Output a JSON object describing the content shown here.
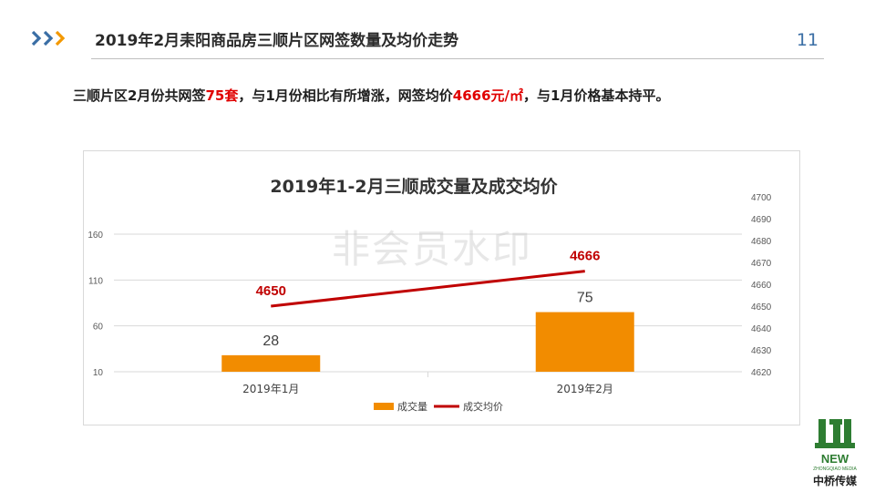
{
  "header": {
    "title": "2019年2月耒阳商品房三顺片区网签数量及均价走势",
    "page_number": "11"
  },
  "summary": {
    "part1": "三顺片区2月份共网签",
    "highlight1": "75套",
    "part2": "，与1月份相比有所增涨，网签均价",
    "highlight2": "4666元/㎡",
    "part3": "，与1月价格基本持平。"
  },
  "watermark": "非会员水印",
  "colors": {
    "bar": "#f28c00",
    "line": "#c00000",
    "accent_blue": "#3a6ea5",
    "accent_orange": "#f39800"
  },
  "logo": {
    "top_text": "NEW",
    "sub_text": "ZHONGQIAO MEDIA",
    "name": "中桥传媒"
  },
  "chart_data": {
    "type": "bar",
    "title": "2019年1-2月三顺成交量及成交均价",
    "categories": [
      "2019年1月",
      "2019年2月"
    ],
    "series": [
      {
        "name": "成交量",
        "type": "bar",
        "axis": "left",
        "values": [
          28,
          75
        ],
        "labels": [
          "28",
          "75"
        ]
      },
      {
        "name": "成交均价",
        "type": "line",
        "axis": "right",
        "values": [
          4650,
          4666
        ],
        "labels": [
          "4650",
          "4666"
        ]
      }
    ],
    "y_left": {
      "min": 10,
      "max": 160,
      "ticks": [
        "10",
        "60",
        "110",
        "160"
      ]
    },
    "y_right": {
      "min": 4620,
      "max": 4700,
      "ticks": [
        "4620",
        "4630",
        "4640",
        "4650",
        "4660",
        "4670",
        "4680",
        "4690",
        "4700"
      ]
    },
    "grid": true,
    "legend": "bottom"
  }
}
